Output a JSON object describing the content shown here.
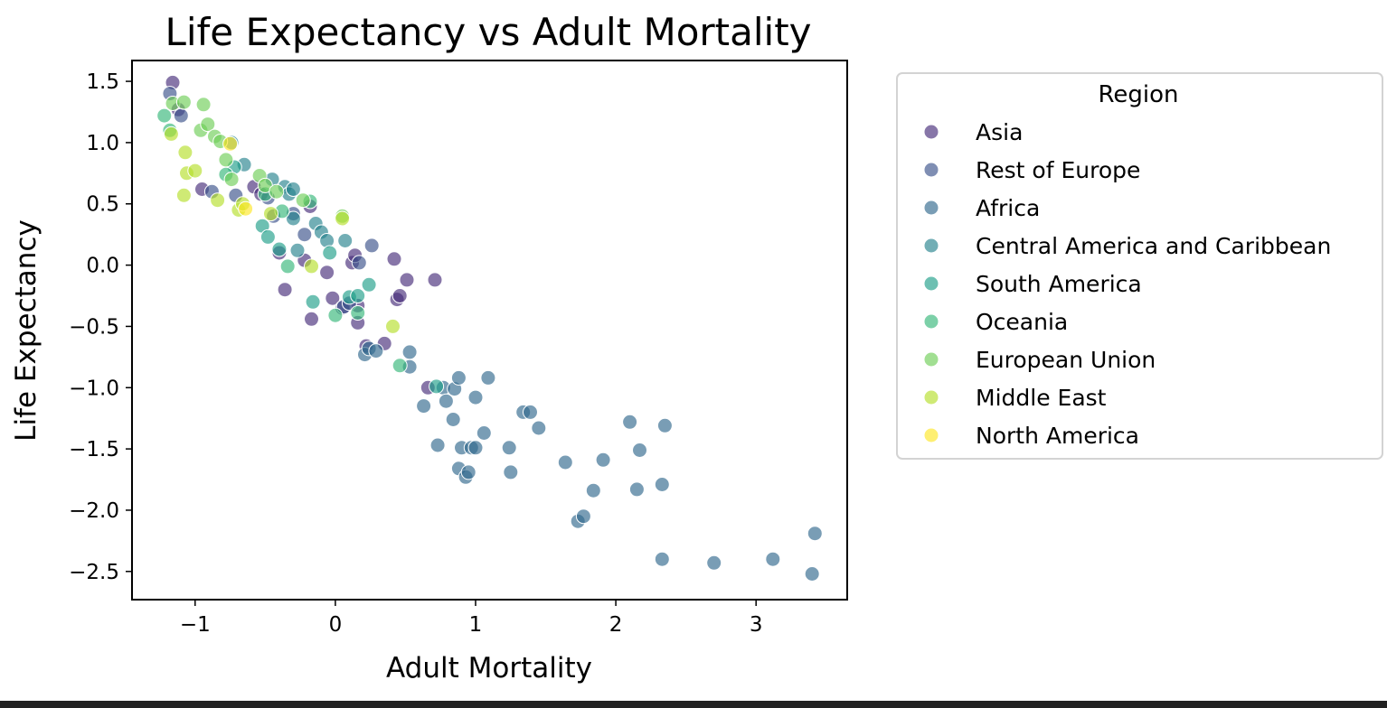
{
  "chart_data": {
    "type": "scatter",
    "title": "Life Expectancy vs Adult Mortality",
    "xlabel": "Adult Mortality",
    "ylabel": "Life Expectancy",
    "xlim": [
      -1.45,
      3.65
    ],
    "ylim": [
      -2.73,
      1.67
    ],
    "xticks": [
      -1,
      0,
      1,
      2,
      3
    ],
    "yticks": [
      1.5,
      1.0,
      0.5,
      0.0,
      -0.5,
      -1.0,
      -1.5,
      -2.0,
      -2.5
    ],
    "xtick_labels": [
      "−1",
      "0",
      "1",
      "2",
      "3"
    ],
    "ytick_labels": [
      "1.5",
      "1.0",
      "0.5",
      "0.0",
      "−0.5",
      "−1.0",
      "−1.5",
      "−2.0",
      "−2.5"
    ],
    "grid": false,
    "legend": {
      "title": "Region",
      "placement": "outside-right"
    },
    "series": [
      {
        "name": "Asia",
        "color": "#472c7a",
        "points": [
          [
            -1.16,
            1.49
          ],
          [
            -1.12,
            1.27
          ],
          [
            -0.95,
            0.62
          ],
          [
            -0.58,
            0.64
          ],
          [
            -0.53,
            0.58
          ],
          [
            -0.4,
            0.1
          ],
          [
            -0.36,
            -0.2
          ],
          [
            -0.22,
            0.04
          ],
          [
            -0.18,
            0.48
          ],
          [
            -0.17,
            -0.44
          ],
          [
            -0.06,
            -0.06
          ],
          [
            -0.02,
            -0.27
          ],
          [
            0.05,
            -0.35
          ],
          [
            0.12,
            0.02
          ],
          [
            0.14,
            0.08
          ],
          [
            0.16,
            -0.33
          ],
          [
            0.16,
            -0.47
          ],
          [
            0.22,
            -0.66
          ],
          [
            0.35,
            -0.64
          ],
          [
            0.42,
            0.05
          ],
          [
            0.44,
            -0.28
          ],
          [
            0.46,
            -0.25
          ],
          [
            0.51,
            -0.12
          ],
          [
            0.66,
            -1.0
          ],
          [
            0.71,
            -0.12
          ]
        ]
      },
      {
        "name": "Rest of Europe",
        "color": "#3b528b",
        "points": [
          [
            -1.18,
            1.4
          ],
          [
            -1.1,
            1.22
          ],
          [
            -0.88,
            0.6
          ],
          [
            -0.71,
            0.57
          ],
          [
            -0.48,
            0.55
          ],
          [
            -0.44,
            0.4
          ],
          [
            -0.3,
            0.42
          ],
          [
            -0.22,
            0.25
          ],
          [
            0.06,
            -0.34
          ],
          [
            0.1,
            -0.31
          ],
          [
            0.26,
            0.16
          ],
          [
            0.17,
            0.02
          ]
        ]
      },
      {
        "name": "Africa",
        "color": "#31688e",
        "points": [
          [
            0.21,
            -0.73
          ],
          [
            0.24,
            -0.68
          ],
          [
            0.29,
            -0.7
          ],
          [
            0.53,
            -0.71
          ],
          [
            0.53,
            -0.83
          ],
          [
            0.63,
            -1.15
          ],
          [
            0.73,
            -1.47
          ],
          [
            0.77,
            -1.0
          ],
          [
            0.79,
            -1.11
          ],
          [
            0.84,
            -1.26
          ],
          [
            0.85,
            -1.01
          ],
          [
            0.88,
            -0.92
          ],
          [
            0.88,
            -1.66
          ],
          [
            0.9,
            -1.49
          ],
          [
            0.93,
            -1.73
          ],
          [
            0.95,
            -1.69
          ],
          [
            0.97,
            -1.49
          ],
          [
            1.0,
            -1.08
          ],
          [
            1.0,
            -1.49
          ],
          [
            1.06,
            -1.37
          ],
          [
            1.09,
            -0.92
          ],
          [
            1.24,
            -1.49
          ],
          [
            1.25,
            -1.69
          ],
          [
            1.34,
            -1.2
          ],
          [
            1.39,
            -1.2
          ],
          [
            1.45,
            -1.33
          ],
          [
            1.64,
            -1.61
          ],
          [
            1.73,
            -2.09
          ],
          [
            1.77,
            -2.05
          ],
          [
            1.84,
            -1.84
          ],
          [
            1.91,
            -1.59
          ],
          [
            2.1,
            -1.28
          ],
          [
            2.15,
            -1.83
          ],
          [
            2.17,
            -1.51
          ],
          [
            2.33,
            -1.79
          ],
          [
            2.33,
            -2.4
          ],
          [
            2.35,
            -1.31
          ],
          [
            2.7,
            -2.43
          ],
          [
            3.12,
            -2.4
          ],
          [
            3.4,
            -2.52
          ],
          [
            3.42,
            -2.19
          ]
        ]
      },
      {
        "name": "Central America and Caribbean",
        "color": "#26828e",
        "points": [
          [
            -0.74,
            1.0
          ],
          [
            -0.65,
            0.82
          ],
          [
            -0.45,
            0.7
          ],
          [
            -0.36,
            0.64
          ],
          [
            -0.33,
            0.58
          ],
          [
            -0.3,
            0.38
          ],
          [
            -0.27,
            0.12
          ],
          [
            -0.14,
            0.34
          ],
          [
            -0.1,
            0.27
          ],
          [
            -0.06,
            0.2
          ],
          [
            0.07,
            0.2
          ],
          [
            -0.3,
            0.62
          ]
        ]
      },
      {
        "name": "South America",
        "color": "#1f9e89",
        "points": [
          [
            -0.72,
            0.8
          ],
          [
            -0.52,
            0.32
          ],
          [
            -0.48,
            0.23
          ],
          [
            -0.4,
            0.13
          ],
          [
            -0.16,
            -0.3
          ],
          [
            -0.04,
            0.1
          ],
          [
            0.1,
            -0.26
          ],
          [
            0.16,
            -0.25
          ],
          [
            0.24,
            -0.16
          ],
          [
            0.72,
            -0.99
          ]
        ]
      },
      {
        "name": "Oceania",
        "color": "#35b779",
        "points": [
          [
            -1.22,
            1.22
          ],
          [
            -1.18,
            1.1
          ],
          [
            -0.78,
            0.74
          ],
          [
            -0.5,
            0.58
          ],
          [
            -0.38,
            0.44
          ],
          [
            -0.34,
            -0.01
          ],
          [
            -0.18,
            0.52
          ],
          [
            0.0,
            -0.41
          ],
          [
            0.16,
            -0.39
          ],
          [
            0.46,
            -0.82
          ]
        ]
      },
      {
        "name": "European Union",
        "color": "#6ece58",
        "points": [
          [
            -1.16,
            1.32
          ],
          [
            -1.08,
            1.33
          ],
          [
            -0.94,
            1.31
          ],
          [
            -0.96,
            1.1
          ],
          [
            -0.91,
            1.15
          ],
          [
            -0.86,
            1.05
          ],
          [
            -0.82,
            1.01
          ],
          [
            -0.78,
            0.86
          ],
          [
            -0.74,
            0.7
          ],
          [
            -0.54,
            0.73
          ],
          [
            -0.5,
            0.65
          ],
          [
            -0.42,
            0.6
          ],
          [
            -0.23,
            0.53
          ],
          [
            0.05,
            0.4
          ]
        ]
      },
      {
        "name": "Middle East",
        "color": "#b5de2b",
        "points": [
          [
            -1.17,
            1.07
          ],
          [
            -1.07,
            0.92
          ],
          [
            -1.06,
            0.75
          ],
          [
            -1.08,
            0.57
          ],
          [
            -1.0,
            0.77
          ],
          [
            -0.84,
            0.53
          ],
          [
            -0.69,
            0.45
          ],
          [
            -0.66,
            0.5
          ],
          [
            -0.46,
            0.42
          ],
          [
            -0.17,
            -0.01
          ],
          [
            0.05,
            0.38
          ],
          [
            0.41,
            -0.5
          ]
        ]
      },
      {
        "name": "North America",
        "color": "#fde725",
        "points": [
          [
            -0.75,
            0.99
          ],
          [
            -0.64,
            0.46
          ]
        ]
      }
    ]
  }
}
